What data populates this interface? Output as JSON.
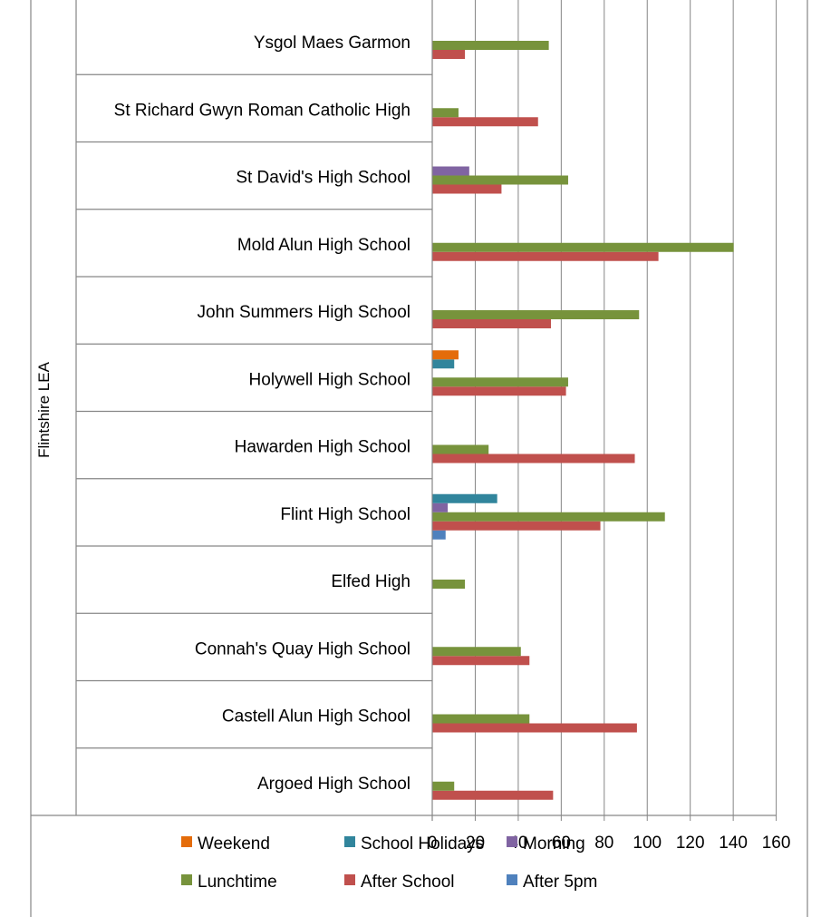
{
  "chart_data": {
    "type": "bar",
    "orientation": "horizontal",
    "group_label": "Flintshire LEA",
    "categories": [
      "Ysgol Maes Garmon",
      "St Richard Gwyn Roman Catholic High",
      "St David's High School",
      "Mold Alun High School",
      "John Summers High School",
      "Holywell High School",
      "Hawarden High School",
      "Flint High School",
      "Elfed High",
      "Connah's Quay High School",
      "Castell Alun High School",
      "Argoed High School"
    ],
    "series": [
      {
        "name": "Weekend",
        "color": "#E46C0A",
        "values": [
          0,
          0,
          0,
          0,
          0,
          12,
          0,
          0,
          0,
          0,
          0,
          0
        ]
      },
      {
        "name": "School Holidays",
        "color": "#31859C",
        "values": [
          0,
          0,
          0,
          0,
          0,
          10,
          0,
          30,
          0,
          0,
          0,
          0
        ]
      },
      {
        "name": "Morning",
        "color": "#8064A2",
        "values": [
          0,
          0,
          17,
          0,
          0,
          0,
          0,
          7,
          0,
          0,
          0,
          0
        ]
      },
      {
        "name": "Lunchtime",
        "color": "#77933C",
        "values": [
          54,
          12,
          63,
          140,
          96,
          63,
          26,
          108,
          15,
          41,
          45,
          10
        ]
      },
      {
        "name": "After School",
        "color": "#C0504D",
        "values": [
          15,
          49,
          32,
          105,
          55,
          62,
          94,
          78,
          0,
          45,
          95,
          56
        ]
      },
      {
        "name": "After 5pm",
        "color": "#4F81BD",
        "values": [
          0,
          0,
          0,
          0,
          0,
          0,
          0,
          6,
          0,
          0,
          0,
          0
        ]
      }
    ],
    "xlim": [
      0,
      160
    ],
    "x_ticks": [
      "0",
      "20",
      "40",
      "60",
      "80",
      "100",
      "120",
      "140",
      "160"
    ],
    "grid": true,
    "legend_position": "bottom"
  }
}
